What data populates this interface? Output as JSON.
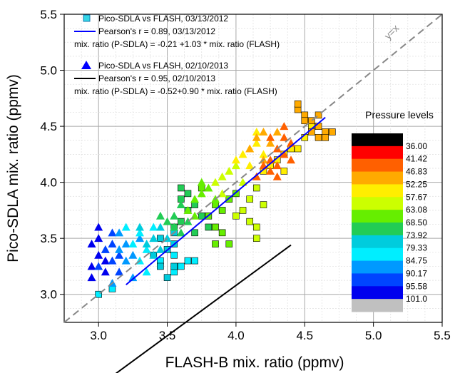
{
  "chart_data": {
    "type": "scatter",
    "xlabel": "FLASH-B mix. ratio (ppmv)",
    "ylabel": "Pico-SDLA mix. ratio (ppmv)",
    "xlim": [
      2.75,
      5.5
    ],
    "ylim": [
      2.75,
      5.5
    ],
    "x_ticks": [
      "3.0",
      "3.5",
      "4.0",
      "4.5",
      "5.0",
      "5.5"
    ],
    "y_ticks": [
      "3.0",
      "3.5",
      "4.0",
      "4.5",
      "5.0",
      "5.5"
    ],
    "grid": true,
    "identity_line": {
      "label": "y=x",
      "color": "#888888"
    },
    "legend": {
      "placement": "top-left",
      "entries": [
        {
          "marker": "square",
          "color": "#33d6e6",
          "text": "Pico-SDLA vs FLASH, 03/13/2012"
        },
        {
          "line": true,
          "color": "#0000ff",
          "text": "Pearson's r = 0.89, 03/13/2012"
        },
        {
          "text": "mix. ratio (P-SDLA) = -0.21 +1.03 * mix. ratio (FLASH)"
        },
        {
          "marker": "triangle",
          "color": "#0000ff",
          "text": "Pico-SDLA vs FLASH, 02/10/2013"
        },
        {
          "line": true,
          "color": "#000000",
          "text": "Pearson's r = 0.95, 02/10/2013"
        },
        {
          "text": "mix. ratio (P-SDLA) = -0.52+0.90 * mix. ratio (FLASH)"
        }
      ]
    },
    "series": [
      {
        "marker": "square",
        "fit": {
          "intercept": -0.21,
          "slope": 1.03,
          "x_range": [
            3.2,
            4.65
          ],
          "color": "#0000ff"
        },
        "points": [
          [
            3.0,
            3.0,
            79.33
          ],
          [
            3.1,
            3.05,
            79.33
          ],
          [
            3.55,
            3.2,
            79.33
          ],
          [
            3.6,
            3.25,
            79.33
          ],
          [
            3.65,
            3.3,
            79.33
          ],
          [
            3.7,
            3.3,
            79.33
          ],
          [
            3.55,
            3.35,
            79.33
          ],
          [
            3.45,
            3.3,
            79.33
          ],
          [
            3.5,
            3.15,
            73.92
          ],
          [
            3.55,
            3.25,
            73.92
          ],
          [
            3.5,
            3.4,
            73.92
          ],
          [
            3.45,
            3.5,
            73.92
          ],
          [
            3.55,
            3.55,
            73.92
          ],
          [
            3.45,
            3.25,
            73.92
          ],
          [
            3.4,
            3.35,
            73.92
          ],
          [
            3.55,
            3.45,
            73.92
          ],
          [
            3.55,
            3.6,
            68.5
          ],
          [
            3.6,
            3.65,
            68.5
          ],
          [
            3.65,
            3.75,
            68.5
          ],
          [
            3.7,
            3.8,
            68.5
          ],
          [
            3.6,
            3.85,
            68.5
          ],
          [
            3.75,
            3.7,
            68.5
          ],
          [
            3.8,
            3.6,
            68.5
          ],
          [
            3.7,
            3.55,
            68.5
          ],
          [
            3.65,
            3.9,
            68.5
          ],
          [
            3.6,
            3.95,
            68.5
          ],
          [
            3.8,
            3.7,
            63.08
          ],
          [
            3.85,
            3.8,
            63.08
          ],
          [
            3.9,
            3.75,
            63.08
          ],
          [
            3.85,
            3.6,
            63.08
          ],
          [
            3.95,
            3.85,
            63.08
          ],
          [
            3.9,
            3.55,
            63.08
          ],
          [
            3.95,
            3.45,
            63.08
          ],
          [
            3.85,
            3.45,
            63.08
          ],
          [
            4.0,
            3.9,
            63.08
          ],
          [
            3.75,
            3.95,
            63.08
          ],
          [
            4.0,
            3.7,
            57.67
          ],
          [
            4.1,
            3.65,
            57.67
          ],
          [
            4.15,
            3.5,
            57.67
          ],
          [
            4.15,
            3.6,
            57.67
          ],
          [
            4.05,
            3.75,
            57.67
          ],
          [
            4.1,
            3.85,
            57.67
          ],
          [
            4.15,
            3.95,
            57.67
          ],
          [
            4.2,
            3.8,
            57.67
          ],
          [
            4.2,
            4.1,
            52.25
          ],
          [
            4.25,
            4.15,
            52.25
          ],
          [
            4.3,
            4.2,
            52.25
          ],
          [
            4.35,
            4.25,
            52.25
          ],
          [
            4.35,
            4.1,
            52.25
          ],
          [
            4.4,
            4.3,
            52.25
          ],
          [
            4.45,
            4.3,
            52.25
          ],
          [
            4.5,
            4.4,
            52.25
          ],
          [
            4.55,
            4.5,
            52.25
          ],
          [
            4.45,
            4.65,
            46.83
          ],
          [
            4.5,
            4.6,
            46.83
          ],
          [
            4.55,
            4.55,
            46.83
          ],
          [
            4.6,
            4.5,
            46.83
          ],
          [
            4.65,
            4.45,
            46.83
          ],
          [
            4.6,
            4.4,
            46.83
          ],
          [
            4.55,
            4.45,
            46.83
          ],
          [
            4.5,
            4.55,
            46.83
          ],
          [
            4.65,
            4.4,
            46.83
          ],
          [
            4.7,
            4.45,
            46.83
          ],
          [
            4.6,
            4.6,
            46.83
          ],
          [
            4.45,
            4.7,
            46.83
          ]
        ]
      },
      {
        "marker": "triangle",
        "fit": {
          "intercept": -0.52,
          "slope": 0.9,
          "x_range": [
            2.95,
            4.4
          ],
          "color": "#000000"
        },
        "points": [
          [
            2.95,
            3.25,
            95.58
          ],
          [
            3.0,
            3.35,
            95.58
          ],
          [
            2.95,
            3.45,
            95.58
          ],
          [
            3.0,
            3.5,
            95.58
          ],
          [
            3.05,
            3.3,
            95.58
          ],
          [
            2.95,
            3.15,
            95.58
          ],
          [
            3.0,
            3.6,
            95.58
          ],
          [
            3.05,
            3.2,
            95.58
          ],
          [
            3.1,
            3.3,
            90.17
          ],
          [
            3.05,
            3.4,
            90.17
          ],
          [
            3.1,
            3.45,
            90.17
          ],
          [
            3.15,
            3.35,
            90.17
          ],
          [
            3.0,
            3.25,
            90.17
          ],
          [
            3.15,
            3.2,
            90.17
          ],
          [
            3.1,
            3.55,
            90.17
          ],
          [
            3.15,
            3.4,
            84.75
          ],
          [
            3.2,
            3.45,
            84.75
          ],
          [
            3.15,
            3.55,
            84.75
          ],
          [
            3.25,
            3.35,
            84.75
          ],
          [
            3.2,
            3.3,
            84.75
          ],
          [
            3.3,
            3.5,
            84.75
          ],
          [
            3.25,
            3.15,
            84.75
          ],
          [
            3.1,
            3.1,
            84.75
          ],
          [
            3.25,
            3.45,
            79.33
          ],
          [
            3.3,
            3.55,
            79.33
          ],
          [
            3.35,
            3.4,
            79.33
          ],
          [
            3.3,
            3.3,
            79.33
          ],
          [
            3.4,
            3.6,
            79.33
          ],
          [
            3.2,
            3.6,
            79.33
          ],
          [
            3.35,
            3.2,
            79.33
          ],
          [
            3.35,
            3.45,
            73.92
          ],
          [
            3.4,
            3.5,
            73.92
          ],
          [
            3.45,
            3.6,
            73.92
          ],
          [
            3.5,
            3.5,
            73.92
          ],
          [
            3.4,
            3.35,
            73.92
          ],
          [
            3.3,
            3.6,
            73.92
          ],
          [
            3.45,
            3.4,
            73.92
          ],
          [
            3.5,
            3.65,
            68.5
          ],
          [
            3.55,
            3.7,
            68.5
          ],
          [
            3.6,
            3.8,
            68.5
          ],
          [
            3.55,
            3.6,
            68.5
          ],
          [
            3.45,
            3.7,
            68.5
          ],
          [
            3.65,
            3.65,
            68.5
          ],
          [
            3.6,
            3.55,
            68.5
          ],
          [
            3.65,
            3.75,
            63.08
          ],
          [
            3.7,
            3.85,
            63.08
          ],
          [
            3.75,
            3.9,
            63.08
          ],
          [
            3.8,
            3.95,
            63.08
          ],
          [
            3.7,
            3.7,
            63.08
          ],
          [
            3.85,
            3.85,
            63.08
          ],
          [
            3.75,
            4.0,
            63.08
          ],
          [
            3.85,
            4.0,
            57.67
          ],
          [
            3.9,
            4.05,
            57.67
          ],
          [
            3.95,
            4.1,
            57.67
          ],
          [
            4.0,
            4.15,
            57.67
          ],
          [
            3.9,
            3.9,
            57.67
          ],
          [
            4.05,
            4.0,
            57.67
          ],
          [
            4.0,
            4.2,
            52.25
          ],
          [
            4.05,
            4.25,
            52.25
          ],
          [
            4.1,
            4.3,
            52.25
          ],
          [
            4.15,
            4.35,
            52.25
          ],
          [
            4.1,
            4.15,
            52.25
          ],
          [
            4.2,
            4.25,
            52.25
          ],
          [
            4.15,
            4.45,
            52.25
          ],
          [
            4.1,
            4.3,
            46.83
          ],
          [
            4.15,
            4.4,
            46.83
          ],
          [
            4.2,
            4.45,
            46.83
          ],
          [
            4.25,
            4.35,
            46.83
          ],
          [
            4.3,
            4.45,
            46.83
          ],
          [
            4.2,
            4.2,
            46.83
          ],
          [
            4.15,
            4.05,
            41.42
          ],
          [
            4.2,
            4.15,
            41.42
          ],
          [
            4.25,
            4.2,
            41.42
          ],
          [
            4.3,
            4.3,
            41.42
          ],
          [
            4.35,
            4.25,
            41.42
          ],
          [
            4.25,
            4.4,
            41.42
          ],
          [
            4.35,
            4.4,
            41.42
          ],
          [
            4.3,
            4.15,
            41.42
          ],
          [
            4.4,
            4.35,
            41.42
          ],
          [
            4.3,
            4.05,
            41.42
          ],
          [
            4.35,
            4.5,
            41.42
          ],
          [
            4.25,
            4.1,
            41.42
          ],
          [
            4.4,
            4.2,
            41.42
          ]
        ]
      }
    ],
    "colorbar": {
      "title": "Pressure levels",
      "levels": [
        "36.00",
        "41.42",
        "46.83",
        "52.25",
        "57.67",
        "63.08",
        "68.50",
        "73.92",
        "79.33",
        "84.75",
        "90.17",
        "95.58",
        "101.0"
      ],
      "colors": [
        "#000000",
        "#ff0000",
        "#ff6000",
        "#ffaa00",
        "#ffee00",
        "#ccff00",
        "#66ee00",
        "#22cc55",
        "#00ccdd",
        "#00eeff",
        "#0099ff",
        "#0044ff",
        "#0000ee",
        "#c0c0c0"
      ]
    }
  }
}
